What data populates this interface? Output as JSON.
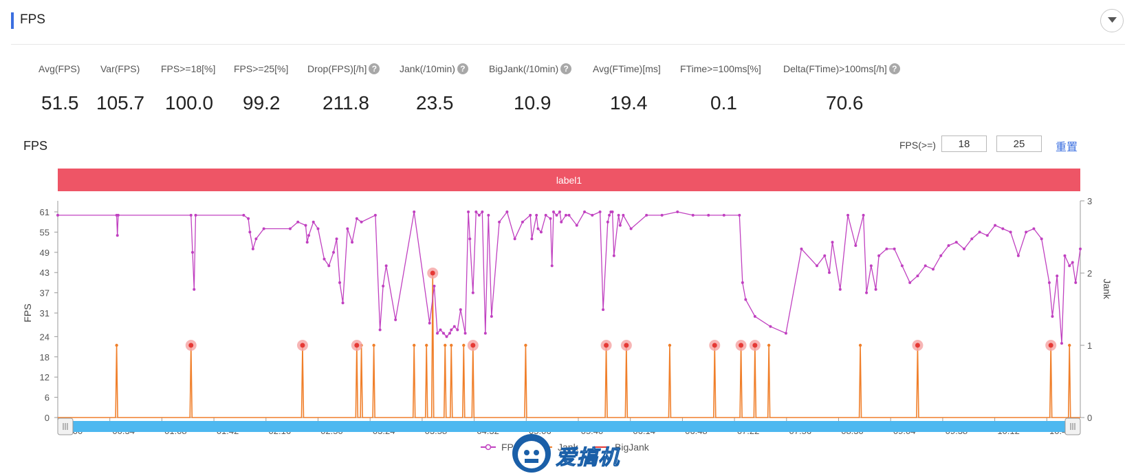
{
  "header": {
    "title": "FPS"
  },
  "metrics": [
    {
      "label": "Avg(FPS)",
      "value": "51.5",
      "help": false
    },
    {
      "label": "Var(FPS)",
      "value": "105.7",
      "help": false
    },
    {
      "label": "FPS>=18[%]",
      "value": "100.0",
      "help": false
    },
    {
      "label": "FPS>=25[%]",
      "value": "99.2",
      "help": false
    },
    {
      "label": "Drop(FPS)[/h]",
      "value": "211.8",
      "help": true
    },
    {
      "label": "Jank(/10min)",
      "value": "23.5",
      "help": true
    },
    {
      "label": "BigJank(/10min)",
      "value": "10.9",
      "help": true
    },
    {
      "label": "Avg(FTime)[ms]",
      "value": "19.4",
      "help": false
    },
    {
      "label": "FTime>=100ms[%]",
      "value": "0.1",
      "help": false
    },
    {
      "label": "Delta(FTime)>100ms[/h]",
      "value": "70.6",
      "help": true
    }
  ],
  "chart_section": {
    "title": "FPS",
    "filter_label": "FPS(>=)",
    "filter_low": "18",
    "filter_high": "25",
    "reset_label": "重置",
    "watermark": "爱搞机"
  },
  "chart_data": {
    "type": "line",
    "band_label": "label1",
    "colors": {
      "fps": "#c040c0",
      "jank": "#f07f2a",
      "bigjank": "#e53935",
      "band": "#ee5566",
      "slider": "#4db8f0"
    },
    "x_ticks": [
      "00:00",
      "00:34",
      "01:08",
      "01:42",
      "02:16",
      "02:50",
      "03:24",
      "03:58",
      "04:32",
      "05:06",
      "05:40",
      "06:14",
      "06:48",
      "07:22",
      "07:56",
      "08:30",
      "09:04",
      "09:38",
      "10:12",
      "10:46"
    ],
    "x_range_seconds": [
      0,
      660
    ],
    "y_left_label": "FPS",
    "y_left_ticks": [
      "0",
      "6",
      "12",
      "18",
      "24",
      "31",
      "37",
      "43",
      "49",
      "55",
      "61"
    ],
    "y_left_range": [
      0,
      61
    ],
    "y_right_label": "Jank",
    "y_right_ticks": [
      "0",
      "1",
      "2",
      "3"
    ],
    "y_right_range": [
      0,
      3
    ],
    "legend": [
      "FPS",
      "Jank",
      "BigJank"
    ],
    "series": [
      {
        "name": "FPS",
        "x": [
          0,
          38,
          38.5,
          39,
          86,
          87,
          88,
          89,
          120,
          123,
          124,
          126,
          128,
          133,
          150,
          155,
          160,
          161,
          162,
          165,
          168,
          172,
          175,
          178,
          180,
          182,
          184,
          187,
          190,
          193,
          196,
          205,
          208,
          210,
          212,
          218,
          230,
          240,
          243,
          245,
          247,
          249,
          251,
          253,
          254,
          256,
          258,
          260,
          263,
          265,
          266,
          268,
          270,
          272,
          274,
          276,
          278,
          280,
          285,
          290,
          295,
          300,
          305,
          306,
          309,
          310,
          312,
          315,
          318,
          319,
          320,
          322,
          324,
          325,
          328,
          330,
          335,
          340,
          345,
          350,
          352,
          355,
          356,
          357,
          358,
          359,
          362,
          363,
          365,
          370,
          380,
          390,
          400,
          410,
          420,
          430,
          440,
          442,
          444,
          450,
          460,
          470,
          480,
          490,
          495,
          498,
          500,
          505,
          510,
          515,
          520,
          522,
          525,
          528,
          530,
          535,
          540,
          545,
          550,
          555,
          560,
          565,
          570,
          575,
          580,
          585,
          590,
          595,
          600,
          605,
          610,
          615,
          620,
          625,
          630,
          635,
          640,
          642,
          645,
          648,
          650,
          653,
          655,
          657,
          660
        ],
        "values": [
          60,
          60,
          54,
          60,
          60,
          49,
          38,
          60,
          60,
          59,
          55,
          50,
          53,
          56,
          56,
          58,
          57,
          52,
          54,
          58,
          56,
          47,
          45,
          49,
          53,
          40,
          34,
          56,
          52,
          59,
          58,
          60,
          26,
          39,
          45,
          29,
          61,
          28,
          39,
          25,
          26,
          25,
          24,
          25,
          26,
          27,
          26,
          32,
          25,
          61,
          53,
          37,
          61,
          60,
          61,
          25,
          60,
          30,
          58,
          61,
          53,
          58,
          60,
          53,
          60,
          56,
          55,
          60,
          59,
          45,
          61,
          60,
          61,
          58,
          60,
          60,
          57,
          61,
          60,
          61,
          32,
          58,
          60,
          61,
          61,
          48,
          60,
          57,
          60,
          56,
          60,
          60,
          61,
          60,
          60,
          60,
          60,
          40,
          35,
          30,
          27,
          25,
          50,
          45,
          48,
          43,
          52,
          38,
          60,
          51,
          60,
          37,
          45,
          38,
          48,
          50,
          50,
          45,
          40,
          42,
          45,
          44,
          48,
          51,
          52,
          50,
          53,
          55,
          54,
          57,
          56,
          55,
          48,
          55,
          56,
          53,
          40,
          30,
          42,
          22,
          48,
          45,
          46,
          40,
          50
        ]
      },
      {
        "name": "Jank",
        "x": [
          38,
          86,
          158,
          193,
          196,
          204,
          230,
          238,
          242,
          250,
          254,
          262,
          268,
          302,
          354,
          367,
          395,
          424,
          441,
          450,
          459,
          518,
          555,
          641,
          653
        ],
        "values": [
          1,
          1,
          1,
          1,
          1,
          1,
          1,
          1,
          2,
          1,
          1,
          1,
          1,
          1,
          1,
          1,
          1,
          1,
          1,
          1,
          1,
          1,
          1,
          1,
          1
        ]
      },
      {
        "name": "BigJank",
        "x": [
          86,
          158,
          193,
          242,
          268,
          354,
          367,
          424,
          441,
          450,
          555,
          641
        ],
        "values": [
          1,
          1,
          1,
          2,
          1,
          1,
          1,
          1,
          1,
          1,
          1,
          1
        ]
      }
    ]
  }
}
